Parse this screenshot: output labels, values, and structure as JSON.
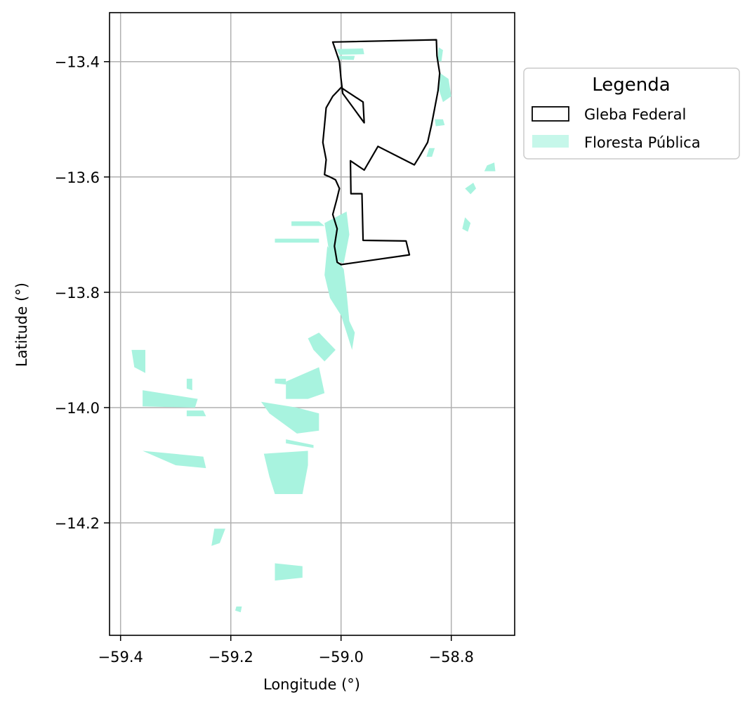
{
  "chart_data": {
    "type": "map",
    "xlabel": "Longitude (°)",
    "ylabel": "Latitude (°)",
    "xlim": [
      -59.42,
      -58.685
    ],
    "ylim": [
      -14.395,
      -13.315
    ],
    "grid": true,
    "x_ticks": [
      -59.4,
      -59.2,
      -59.0,
      -58.8
    ],
    "x_tick_labels": [
      "−59.4",
      "−59.2",
      "−59.0",
      "−58.8"
    ],
    "y_ticks": [
      -13.4,
      -13.6,
      -13.8,
      -14.0,
      -14.2
    ],
    "y_tick_labels": [
      "−13.4",
      "−13.6",
      "−13.8",
      "−14.0",
      "−14.2"
    ],
    "legend": {
      "title": "Legenda",
      "placement": "outside-right-top",
      "entries": [
        {
          "label": "Gleba Federal",
          "style": "outline",
          "color": "#000000"
        },
        {
          "label": "Floresta Pública",
          "style": "fill",
          "color": "#a8f3df"
        }
      ]
    },
    "colors": {
      "forest": "#a8f3df",
      "gleba": "#000000",
      "grid": "#b0b0b0"
    },
    "gleba_federal": [
      [
        -59.015,
        -13.366
      ],
      [
        -58.827,
        -13.362
      ],
      [
        -58.826,
        -13.39
      ],
      [
        -58.821,
        -13.42
      ],
      [
        -58.824,
        -13.45
      ],
      [
        -58.83,
        -13.48
      ],
      [
        -58.836,
        -13.51
      ],
      [
        -58.843,
        -13.54
      ],
      [
        -58.858,
        -13.565
      ],
      [
        -58.867,
        -13.579
      ],
      [
        -58.933,
        -13.547
      ],
      [
        -58.958,
        -13.588
      ],
      [
        -58.983,
        -13.572
      ],
      [
        -58.982,
        -13.629
      ],
      [
        -58.962,
        -13.629
      ],
      [
        -58.96,
        -13.71
      ],
      [
        -58.882,
        -13.711
      ],
      [
        -58.876,
        -13.735
      ],
      [
        -59.0,
        -13.752
      ],
      [
        -59.007,
        -13.748
      ],
      [
        -59.012,
        -13.72
      ],
      [
        -59.007,
        -13.69
      ],
      [
        -59.015,
        -13.665
      ],
      [
        -59.008,
        -13.64
      ],
      [
        -59.003,
        -13.62
      ],
      [
        -59.01,
        -13.605
      ],
      [
        -59.02,
        -13.6
      ],
      [
        -59.03,
        -13.596
      ],
      [
        -59.027,
        -13.57
      ],
      [
        -59.033,
        -13.54
      ],
      [
        -59.03,
        -13.51
      ],
      [
        -59.027,
        -13.48
      ],
      [
        -59.015,
        -13.46
      ],
      [
        -59.005,
        -13.45
      ],
      [
        -59.0,
        -13.445
      ],
      [
        -58.96,
        -13.47
      ],
      [
        -58.958,
        -13.506
      ],
      [
        -58.997,
        -13.455
      ],
      [
        -59.0,
        -13.43
      ],
      [
        -59.003,
        -13.4
      ],
      [
        -59.01,
        -13.38
      ],
      [
        -59.015,
        -13.366
      ]
    ],
    "floresta_publica": [
      [
        [
          -59.008,
          -13.378
        ],
        [
          -58.96,
          -13.377
        ],
        [
          -58.958,
          -13.387
        ],
        [
          -59.003,
          -13.388
        ]
      ],
      [
        [
          -59.005,
          -13.39
        ],
        [
          -58.975,
          -13.39
        ],
        [
          -58.977,
          -13.397
        ],
        [
          -59.004,
          -13.396
        ]
      ],
      [
        [
          -58.823,
          -13.375
        ],
        [
          -58.815,
          -13.38
        ],
        [
          -58.818,
          -13.4
        ],
        [
          -58.825,
          -13.398
        ]
      ],
      [
        [
          -58.82,
          -13.42
        ],
        [
          -58.805,
          -13.43
        ],
        [
          -58.8,
          -13.46
        ],
        [
          -58.815,
          -13.47
        ],
        [
          -58.822,
          -13.45
        ]
      ],
      [
        [
          -58.83,
          -13.5
        ],
        [
          -58.815,
          -13.5
        ],
        [
          -58.812,
          -13.51
        ],
        [
          -58.828,
          -13.512
        ]
      ],
      [
        [
          -58.84,
          -13.55
        ],
        [
          -58.83,
          -13.55
        ],
        [
          -58.835,
          -13.565
        ],
        [
          -58.845,
          -13.565
        ]
      ],
      [
        [
          -58.735,
          -13.58
        ],
        [
          -58.722,
          -13.575
        ],
        [
          -58.72,
          -13.59
        ],
        [
          -58.74,
          -13.59
        ]
      ],
      [
        [
          -58.76,
          -13.61
        ],
        [
          -58.775,
          -13.62
        ],
        [
          -58.765,
          -13.63
        ],
        [
          -58.755,
          -13.62
        ]
      ],
      [
        [
          -58.775,
          -13.67
        ],
        [
          -58.78,
          -13.69
        ],
        [
          -58.77,
          -13.695
        ],
        [
          -58.765,
          -13.68
        ]
      ],
      [
        [
          -59.09,
          -13.677
        ],
        [
          -59.04,
          -13.677
        ],
        [
          -59.03,
          -13.685
        ],
        [
          -59.09,
          -13.685
        ]
      ],
      [
        [
          -59.12,
          -13.707
        ],
        [
          -59.04,
          -13.707
        ],
        [
          -59.04,
          -13.714
        ],
        [
          -59.12,
          -13.714
        ]
      ],
      [
        [
          -59.03,
          -13.68
        ],
        [
          -58.99,
          -13.66
        ],
        [
          -58.985,
          -13.7
        ],
        [
          -58.995,
          -13.75
        ],
        [
          -59.02,
          -13.74
        ]
      ],
      [
        [
          -59.025,
          -13.72
        ],
        [
          -58.995,
          -13.76
        ],
        [
          -58.99,
          -13.8
        ],
        [
          -58.985,
          -13.85
        ],
        [
          -58.975,
          -13.87
        ],
        [
          -58.98,
          -13.9
        ],
        [
          -58.99,
          -13.87
        ],
        [
          -59.0,
          -13.84
        ],
        [
          -59.02,
          -13.81
        ],
        [
          -59.03,
          -13.77
        ]
      ],
      [
        [
          -59.06,
          -13.88
        ],
        [
          -59.04,
          -13.87
        ],
        [
          -59.01,
          -13.9
        ],
        [
          -59.03,
          -13.92
        ],
        [
          -59.05,
          -13.9
        ]
      ],
      [
        [
          -59.38,
          -13.9
        ],
        [
          -59.355,
          -13.9
        ],
        [
          -59.355,
          -13.94
        ],
        [
          -59.375,
          -13.93
        ]
      ],
      [
        [
          -59.36,
          -13.97
        ],
        [
          -59.26,
          -13.985
        ],
        [
          -59.265,
          -14.0
        ],
        [
          -59.36,
          -13.998
        ]
      ],
      [
        [
          -59.28,
          -13.95
        ],
        [
          -59.27,
          -13.95
        ],
        [
          -59.27,
          -13.97
        ],
        [
          -59.28,
          -13.967
        ]
      ],
      [
        [
          -59.28,
          -14.005
        ],
        [
          -59.25,
          -14.005
        ],
        [
          -59.245,
          -14.015
        ],
        [
          -59.28,
          -14.015
        ]
      ],
      [
        [
          -59.36,
          -14.075
        ],
        [
          -59.25,
          -14.085
        ],
        [
          -59.245,
          -14.105
        ],
        [
          -59.3,
          -14.1
        ]
      ],
      [
        [
          -59.1,
          -13.955
        ],
        [
          -59.04,
          -13.93
        ],
        [
          -59.03,
          -13.975
        ],
        [
          -59.06,
          -13.985
        ],
        [
          -59.1,
          -13.985
        ]
      ],
      [
        [
          -59.145,
          -13.99
        ],
        [
          -59.08,
          -14.0
        ],
        [
          -59.04,
          -14.01
        ],
        [
          -59.04,
          -14.04
        ],
        [
          -59.08,
          -14.045
        ],
        [
          -59.13,
          -14.01
        ]
      ],
      [
        [
          -59.1,
          -14.055
        ],
        [
          -59.05,
          -14.065
        ],
        [
          -59.05,
          -14.07
        ],
        [
          -59.1,
          -14.062
        ]
      ],
      [
        [
          -59.14,
          -14.08
        ],
        [
          -59.06,
          -14.075
        ],
        [
          -59.06,
          -14.1
        ],
        [
          -59.07,
          -14.15
        ],
        [
          -59.12,
          -14.15
        ],
        [
          -59.13,
          -14.12
        ]
      ],
      [
        [
          -59.12,
          -13.95
        ],
        [
          -59.1,
          -13.95
        ],
        [
          -59.1,
          -13.96
        ],
        [
          -59.12,
          -13.958
        ]
      ],
      [
        [
          -59.23,
          -14.21
        ],
        [
          -59.21,
          -14.21
        ],
        [
          -59.22,
          -14.235
        ],
        [
          -59.235,
          -14.24
        ]
      ],
      [
        [
          -59.12,
          -14.27
        ],
        [
          -59.07,
          -14.275
        ],
        [
          -59.07,
          -14.295
        ],
        [
          -59.12,
          -14.3
        ]
      ],
      [
        [
          -59.19,
          -14.345
        ],
        [
          -59.18,
          -14.345
        ],
        [
          -59.182,
          -14.355
        ],
        [
          -59.192,
          -14.352
        ]
      ]
    ]
  }
}
